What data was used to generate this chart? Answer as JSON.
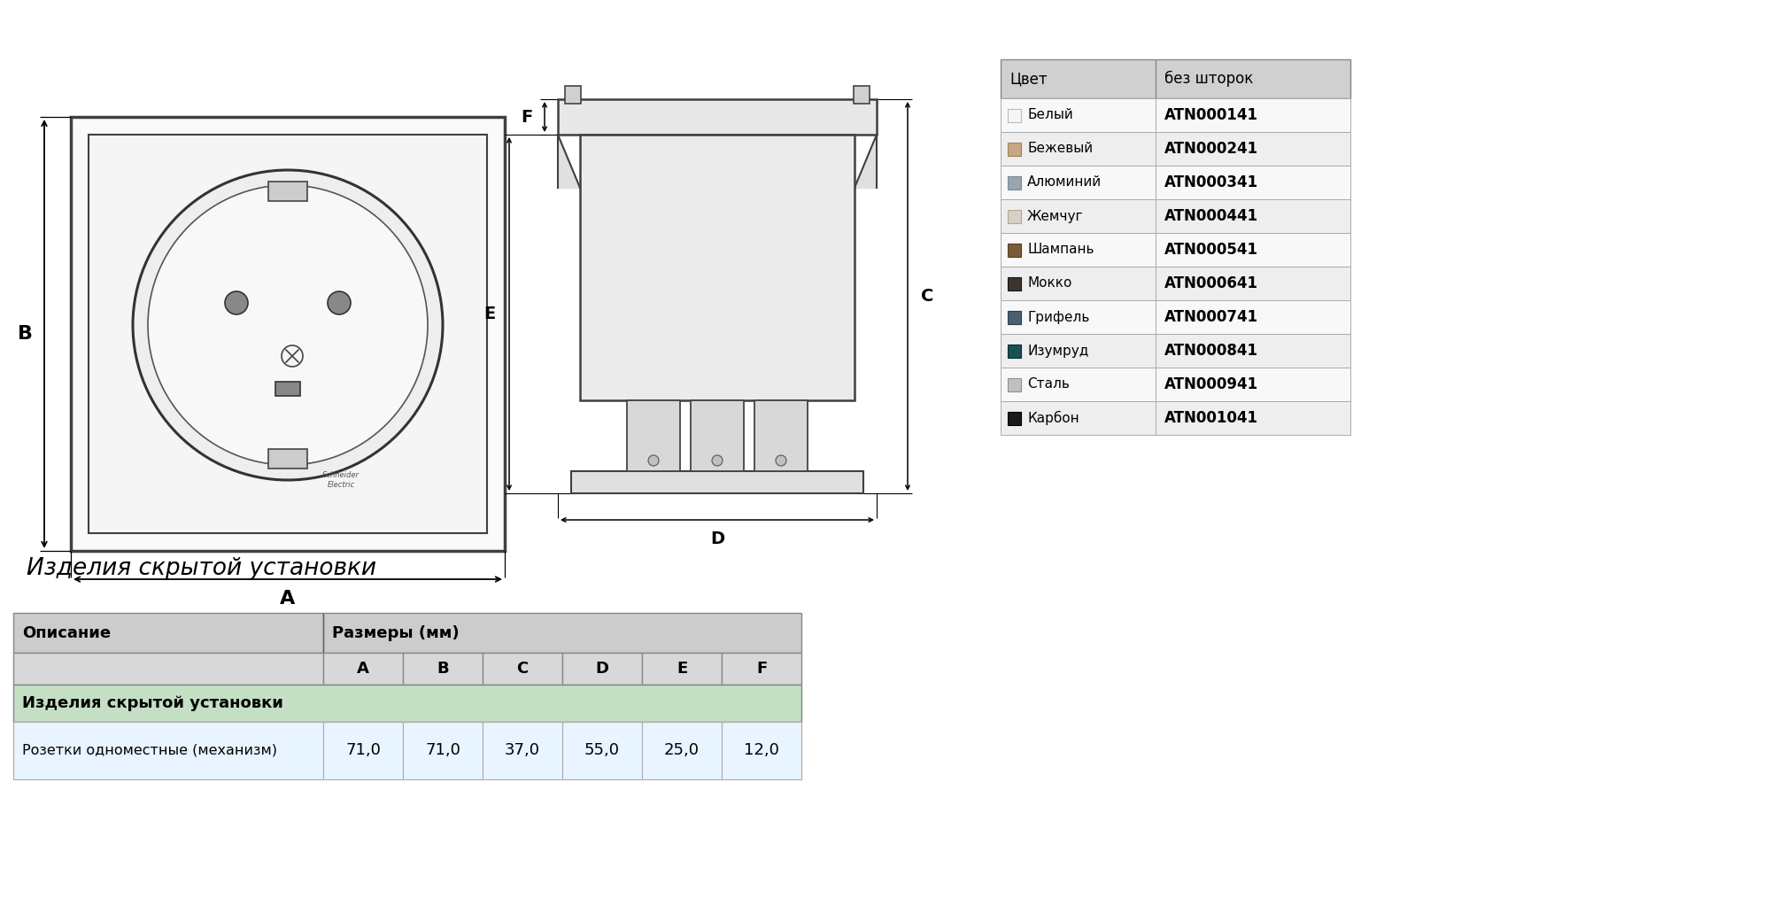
{
  "bg_color": "#ffffff",
  "title_section": "Изделия скрытой установки",
  "color_table_header": [
    "Цвет",
    "без шторок"
  ],
  "color_table_rows": [
    {
      "name": "Белый",
      "code": "ATN000141",
      "color": "#f5f5f5",
      "border": "#bbbbbb"
    },
    {
      "name": "Бежевый",
      "code": "ATN000241",
      "color": "#c8a882",
      "border": "#a08060"
    },
    {
      "name": "Алюминий",
      "code": "ATN000341",
      "color": "#9aa5b0",
      "border": "#7a8a95"
    },
    {
      "name": "Жемчуг",
      "code": "ATN000441",
      "color": "#d8cfc4",
      "border": "#b0a898"
    },
    {
      "name": "Шампань",
      "code": "ATN000541",
      "color": "#7a5c3a",
      "border": "#5a3c1a"
    },
    {
      "name": "Мокко",
      "code": "ATN000641",
      "color": "#3a3530",
      "border": "#1a1510"
    },
    {
      "name": "Грифель",
      "code": "ATN000741",
      "color": "#4a6070",
      "border": "#2a4050"
    },
    {
      "name": "Изумруд",
      "code": "ATN000841",
      "color": "#1a5050",
      "border": "#003030"
    },
    {
      "name": "Сталь",
      "code": "ATN000941",
      "color": "#c0c0c0",
      "border": "#909090"
    },
    {
      "name": "Карбон",
      "code": "ATN001041",
      "color": "#1a1a1a",
      "border": "#000000"
    }
  ],
  "dim_table_col1_header": "Описание",
  "dim_table_col2_header": "Размеры (мм)",
  "dim_table_sub_headers": [
    "A",
    "B",
    "C",
    "D",
    "E",
    "F"
  ],
  "dim_table_group_row": "Изделия скрытой установки",
  "dim_table_data_row": {
    "label": "Розетки одноместные (механизм)",
    "values": [
      "71,0",
      "71,0",
      "37,0",
      "55,0",
      "25,0",
      "12,0"
    ]
  },
  "table_header_bg": "#cccccc",
  "table_subheader_bg": "#d8d8d8",
  "table_group_bg": "#c5dfc5",
  "table_data_bg": "#e8f4ff",
  "color_table_header_bg": "#d0d0d0",
  "color_table_row_bg_even": "#f8f8f8",
  "color_table_row_bg_odd": "#eeeeee"
}
